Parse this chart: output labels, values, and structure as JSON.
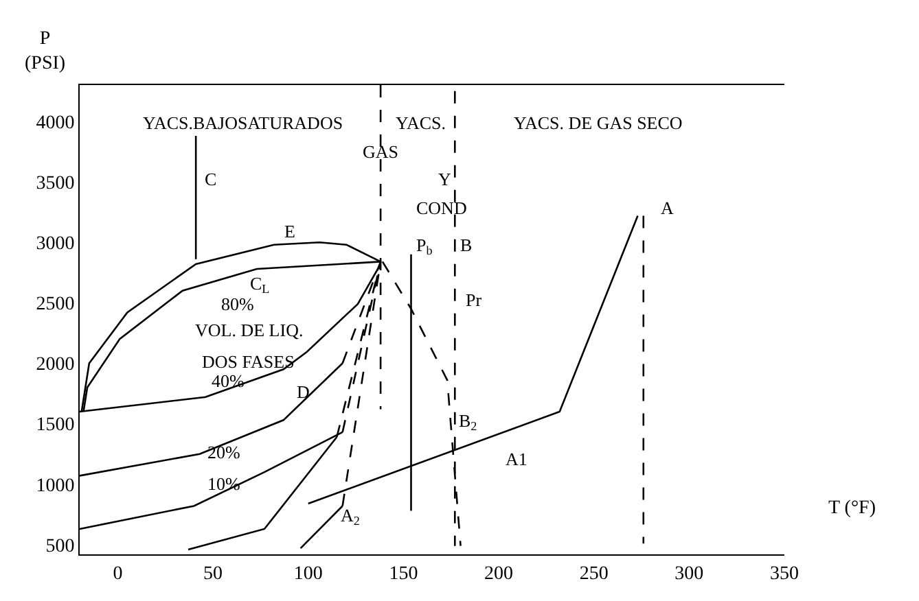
{
  "chart_data": {
    "type": "line",
    "xlabel": "T (°F)",
    "ylabel": "P\n(PSI)",
    "xlim": [
      -20,
      350
    ],
    "ylim": [
      420,
      4300
    ],
    "xticks": [
      0,
      50,
      100,
      150,
      200,
      250,
      300,
      350
    ],
    "yticks": [
      500,
      1000,
      1500,
      2000,
      2500,
      3000,
      3500,
      4000
    ],
    "grid": false,
    "marker": "none",
    "series": [
      {
        "color": "#000000",
        "line_style": "solid",
        "x": [
          -19,
          -15,
          5,
          41,
          82,
          106,
          120,
          138
        ],
        "values": [
          1600,
          2000,
          2420,
          2820,
          2980,
          3000,
          2980,
          2840
        ]
      },
      {
        "color": "#000000",
        "line_style": "solid",
        "x": [
          -18,
          -16,
          1,
          34,
          73,
          138
        ],
        "values": [
          1600,
          1800,
          2200,
          2600,
          2780,
          2840
        ]
      },
      {
        "color": "#000000",
        "line_style": "solid",
        "x": [
          -20,
          46,
          87,
          99,
          126,
          138
        ],
        "values": [
          1600,
          1720,
          1950,
          2090,
          2490,
          2820
        ]
      },
      {
        "color": "#000000",
        "line_style": "solid",
        "x": [
          -20,
          43,
          87,
          118
        ],
        "values": [
          1070,
          1250,
          1530,
          2000
        ]
      },
      {
        "color": "#000000",
        "line_style": "dashed",
        "x": [
          118,
          138
        ],
        "values": [
          2000,
          2840
        ]
      },
      {
        "color": "#000000",
        "line_style": "solid",
        "x": [
          -20,
          40,
          77,
          118
        ],
        "values": [
          630,
          820,
          1100,
          1430
        ]
      },
      {
        "color": "#000000",
        "line_style": "dashed",
        "x": [
          118,
          138
        ],
        "values": [
          1430,
          2840
        ]
      },
      {
        "color": "#000000",
        "line_style": "solid",
        "x": [
          37,
          77,
          115
        ],
        "values": [
          460,
          630,
          1390
        ]
      },
      {
        "color": "#000000",
        "line_style": "dashed",
        "x": [
          115,
          138
        ],
        "values": [
          1390,
          2840
        ]
      },
      {
        "color": "#000000",
        "line_style": "solid",
        "x": [
          96,
          118
        ],
        "values": [
          470,
          820
        ]
      },
      {
        "color": "#000000",
        "line_style": "dashed",
        "x": [
          118,
          138
        ],
        "values": [
          820,
          2840
        ]
      },
      {
        "color": "#000000",
        "line_style": "dashed",
        "x": [
          139,
          154,
          173,
          180
        ],
        "values": [
          2840,
          2450,
          1860,
          490
        ]
      },
      {
        "color": "#000000",
        "line_style": "dashed",
        "x": [
          138,
          138
        ],
        "values": [
          4300,
          1620
        ]
      },
      {
        "color": "#000000",
        "line_style": "solid",
        "x": [
          154,
          154
        ],
        "values": [
          2900,
          780
        ]
      },
      {
        "color": "#000000",
        "line_style": "dashed",
        "x": [
          177,
          177
        ],
        "values": [
          4250,
          490
        ]
      },
      {
        "color": "#000000",
        "line_style": "dashed",
        "x": [
          276,
          276
        ],
        "values": [
          3220,
          510
        ]
      },
      {
        "color": "#000000",
        "line_style": "solid",
        "x": [
          41,
          41
        ],
        "values": [
          3880,
          2860
        ]
      },
      {
        "color": "#000000",
        "line_style": "solid",
        "x": [
          273,
          232,
          100
        ],
        "values": [
          3220,
          1600,
          840
        ]
      }
    ],
    "annotations": [
      "YACS.BAJOSATURADOS",
      "GAS",
      "YACS.",
      "Y",
      "COND",
      "YACS. DE GAS SECO",
      "C",
      "E",
      "C$_{L}$",
      "80%",
      "VOL. DE LIQ.",
      "DOS FASES",
      "40%",
      "D",
      "20%",
      "10%",
      "P$_{b}$",
      "B",
      "Pr",
      "B$_{2}$",
      "A1",
      "A$_{2}$",
      "A"
    ]
  }
}
